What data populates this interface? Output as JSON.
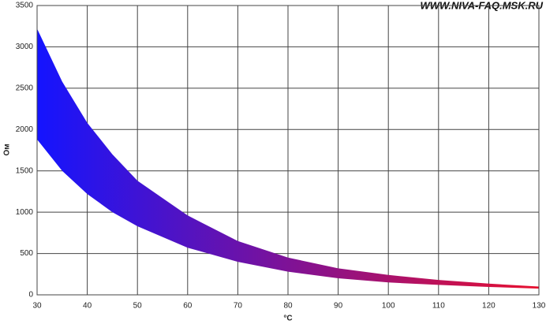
{
  "chart_data": {
    "type": "band",
    "watermark": "WWW.NIVA-FAQ.MSK.RU",
    "x_label": "°C",
    "y_label": "Ом",
    "x": [
      30,
      35,
      40,
      45,
      50,
      60,
      70,
      80,
      90,
      100,
      110,
      120,
      130
    ],
    "series": [
      {
        "values": [
          3220,
          2580,
          2080,
          1700,
          1380,
          960,
          650,
          450,
          320,
          240,
          180,
          135,
          100
        ]
      },
      {
        "values": [
          1880,
          1500,
          1220,
          1000,
          830,
          570,
          400,
          280,
          200,
          150,
          120,
          95,
          75
        ]
      }
    ],
    "colors": [
      "#1414ff",
      "#e8102e"
    ],
    "xlim": [
      30,
      130
    ],
    "xticks": [
      30,
      40,
      50,
      60,
      70,
      80,
      90,
      100,
      110,
      120,
      130
    ],
    "ylim": [
      0,
      3500
    ],
    "yticks": [
      0,
      500,
      1000,
      1500,
      2000,
      2500,
      3000,
      3500
    ],
    "grid": true
  }
}
